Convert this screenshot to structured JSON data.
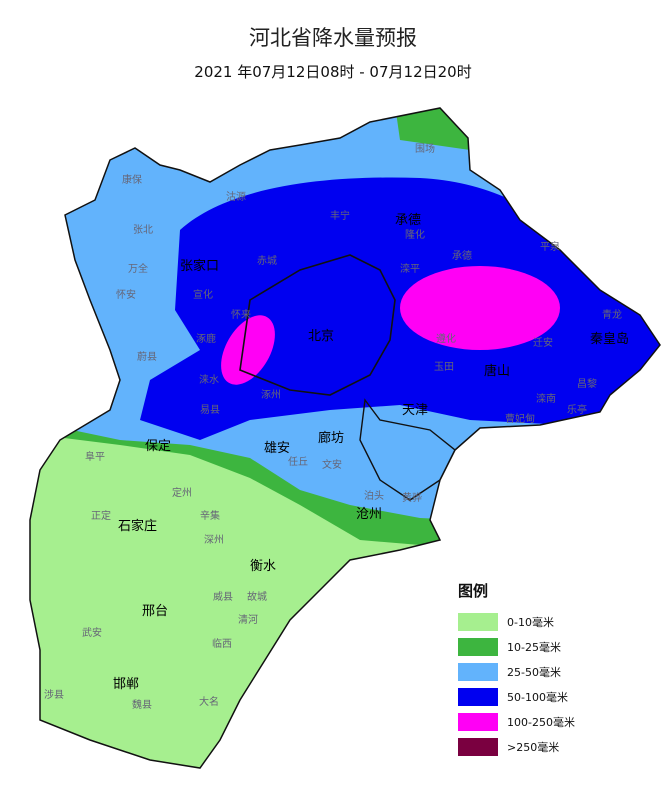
{
  "title": "河北省降水量预报",
  "subtitle": "2021 年07月12日08时 - 07月12日20时",
  "legend": {
    "title": "图例",
    "items": [
      {
        "label": "0-10毫米",
        "color": "#a6ef8f"
      },
      {
        "label": "10-25毫米",
        "color": "#3db53f"
      },
      {
        "label": "25-50毫米",
        "color": "#62b3fc"
      },
      {
        "label": "50-100毫米",
        "color": "#0000f0"
      },
      {
        "label": "100-250毫米",
        "color": "#ff00f5"
      },
      {
        "label": ">250毫米",
        "color": "#7a0040"
      }
    ]
  },
  "cities": [
    {
      "name": "张家口"
    },
    {
      "name": "承德"
    },
    {
      "name": "北京"
    },
    {
      "name": "秦皇岛"
    },
    {
      "name": "唐山"
    },
    {
      "name": "天津"
    },
    {
      "name": "保定"
    },
    {
      "name": "廊坊"
    },
    {
      "name": "雄安"
    },
    {
      "name": "沧州"
    },
    {
      "name": "石家庄"
    },
    {
      "name": "衡水"
    },
    {
      "name": "邢台"
    },
    {
      "name": "邯郸"
    }
  ],
  "counties": [
    {
      "name": "围场"
    },
    {
      "name": "康保"
    },
    {
      "name": "沽源"
    },
    {
      "name": "丰宁"
    },
    {
      "name": "隆化"
    },
    {
      "name": "张北"
    },
    {
      "name": "赤城"
    },
    {
      "name": "滦平"
    },
    {
      "name": "承德"
    },
    {
      "name": "平泉"
    },
    {
      "name": "万全"
    },
    {
      "name": "怀安"
    },
    {
      "name": "宣化"
    },
    {
      "name": "怀来"
    },
    {
      "name": "涿鹿"
    },
    {
      "name": "蔚县"
    },
    {
      "name": "涞水"
    },
    {
      "name": "涿州"
    },
    {
      "name": "易县"
    },
    {
      "name": "青龙"
    },
    {
      "name": "迁安"
    },
    {
      "name": "遵化"
    },
    {
      "name": "玉田"
    },
    {
      "name": "滦南"
    },
    {
      "name": "曹妃甸"
    },
    {
      "name": "乐亭"
    },
    {
      "name": "昌黎"
    },
    {
      "name": "阜平"
    },
    {
      "name": "定州"
    },
    {
      "name": "正定"
    },
    {
      "name": "辛集"
    },
    {
      "name": "深州"
    },
    {
      "name": "故城"
    },
    {
      "name": "清河"
    },
    {
      "name": "威县"
    },
    {
      "name": "临西"
    },
    {
      "name": "武安"
    },
    {
      "name": "涉县"
    },
    {
      "name": "魏县"
    },
    {
      "name": "大名"
    },
    {
      "name": "黄骅"
    },
    {
      "name": "泊头"
    },
    {
      "name": "任丘"
    },
    {
      "name": "文安"
    }
  ]
}
